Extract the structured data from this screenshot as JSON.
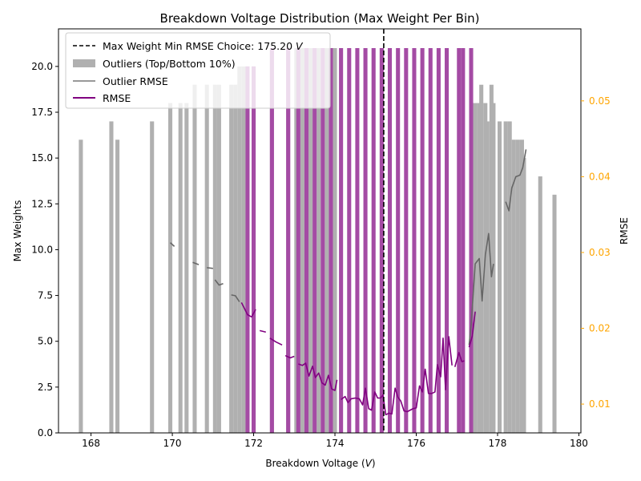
{
  "chart_data": {
    "type": "bar",
    "title": "Breakdown Voltage Distribution (Max Weight Per Bin)",
    "xlabel": "Breakdown Voltage (",
    "xlabel_unit": "V",
    "xlabel_close": ")",
    "ylabel": "Max Weights",
    "y2label": "RMSE",
    "xlim": [
      167.2,
      180.05
    ],
    "ylim": [
      0,
      22.05
    ],
    "y2lim": [
      0.0062,
      0.0595
    ],
    "xticks": [
      168,
      170,
      172,
      174,
      176,
      178,
      180
    ],
    "yticks": [
      0.0,
      2.5,
      5.0,
      7.5,
      10.0,
      12.5,
      15.0,
      17.5,
      20.0
    ],
    "y2ticks": [
      0.01,
      0.02,
      0.03,
      0.04,
      0.05
    ],
    "grid": false,
    "legend_position": "upper-left",
    "colors": {
      "outlier_bar": "#b0b0b0",
      "main_bar": "#a44ba4",
      "outlier_rmse": "#666666",
      "rmse": "#800080",
      "choice_line": "#000000",
      "right_axis": "#ffa500"
    },
    "choice_line": {
      "x": 175.2,
      "label_prefix": "Max Weight Min RMSE Choice: 175.20 ",
      "label_unit": "V"
    },
    "bar_width": 0.1,
    "series": [
      {
        "name": "Outliers (Top/Bottom 10%)",
        "kind": "bar",
        "points": [
          [
            167.75,
            16
          ],
          [
            168.5,
            17
          ],
          [
            168.65,
            16
          ],
          [
            169.5,
            17
          ],
          [
            169.95,
            18
          ],
          [
            170.2,
            18
          ],
          [
            170.35,
            18
          ],
          [
            170.55,
            19
          ],
          [
            170.85,
            19
          ],
          [
            171.05,
            19
          ],
          [
            171.15,
            19
          ],
          [
            171.45,
            19
          ],
          [
            171.55,
            19
          ],
          [
            171.65,
            20
          ],
          [
            171.75,
            20
          ],
          [
            171.85,
            20
          ],
          [
            172.0,
            20
          ],
          [
            172.45,
            21
          ],
          [
            172.85,
            21
          ],
          [
            173.05,
            21
          ],
          [
            173.2,
            21
          ],
          [
            173.4,
            21
          ],
          [
            173.6,
            21
          ],
          [
            173.8,
            21
          ],
          [
            174.0,
            21
          ],
          [
            177.45,
            18
          ],
          [
            177.55,
            18
          ],
          [
            177.6,
            19
          ],
          [
            177.7,
            18
          ],
          [
            177.75,
            17
          ],
          [
            177.85,
            19
          ],
          [
            177.9,
            18
          ],
          [
            178.05,
            17
          ],
          [
            178.2,
            17
          ],
          [
            178.3,
            17
          ],
          [
            178.4,
            16
          ],
          [
            178.5,
            16
          ],
          [
            178.6,
            16
          ],
          [
            178.65,
            15
          ],
          [
            179.05,
            14
          ],
          [
            179.4,
            13
          ]
        ]
      },
      {
        "name": "",
        "kind": "bar",
        "points": [
          [
            171.85,
            20
          ],
          [
            172.0,
            20
          ],
          [
            172.45,
            21
          ],
          [
            172.85,
            21
          ],
          [
            173.1,
            21
          ],
          [
            173.3,
            21
          ],
          [
            173.5,
            21
          ],
          [
            173.7,
            21
          ],
          [
            173.9,
            21
          ],
          [
            174.15,
            21
          ],
          [
            174.35,
            21
          ],
          [
            174.55,
            21
          ],
          [
            174.75,
            21
          ],
          [
            174.95,
            21
          ],
          [
            175.15,
            21
          ],
          [
            175.35,
            21
          ],
          [
            175.55,
            21
          ],
          [
            175.75,
            21
          ],
          [
            175.95,
            21
          ],
          [
            176.15,
            21
          ],
          [
            176.35,
            21
          ],
          [
            176.55,
            21
          ],
          [
            176.75,
            21
          ],
          [
            177.05,
            21
          ],
          [
            177.15,
            21
          ],
          [
            177.35,
            21
          ]
        ]
      },
      {
        "name": "Outlier RMSE",
        "kind": "line",
        "segments": [
          [
            [
              169.95,
              0.0313
            ],
            [
              170.05,
              0.0308
            ]
          ],
          [
            [
              170.5,
              0.0287
            ],
            [
              170.65,
              0.0284
            ]
          ],
          [
            [
              170.85,
              0.028
            ],
            [
              171.0,
              0.0279
            ]
          ],
          [
            [
              171.05,
              0.0264
            ],
            [
              171.15,
              0.0257
            ],
            [
              171.25,
              0.0259
            ]
          ],
          [
            [
              171.45,
              0.0244
            ],
            [
              171.55,
              0.0243
            ],
            [
              171.65,
              0.0235
            ]
          ],
          [
            [
              177.3,
              0.0178
            ],
            [
              177.35,
              0.0205
            ],
            [
              177.45,
              0.0285
            ],
            [
              177.55,
              0.0292
            ],
            [
              177.62,
              0.0236
            ],
            [
              177.7,
              0.0297
            ],
            [
              177.78,
              0.0325
            ],
            [
              177.85,
              0.0268
            ],
            [
              177.9,
              0.0285
            ]
          ],
          [
            [
              178.2,
              0.0367
            ],
            [
              178.28,
              0.0355
            ],
            [
              178.35,
              0.0385
            ],
            [
              178.45,
              0.04
            ],
            [
              178.55,
              0.0402
            ],
            [
              178.62,
              0.0412
            ],
            [
              178.7,
              0.0436
            ]
          ]
        ]
      },
      {
        "name": "RMSE",
        "kind": "line",
        "segments": [
          [
            [
              171.7,
              0.0234
            ],
            [
              171.85,
              0.0218
            ],
            [
              171.95,
              0.0215
            ],
            [
              172.05,
              0.0225
            ]
          ],
          [
            [
              172.15,
              0.0197
            ],
            [
              172.3,
              0.0195
            ]
          ],
          [
            [
              172.4,
              0.0187
            ],
            [
              172.55,
              0.0182
            ],
            [
              172.7,
              0.0178
            ]
          ],
          [
            [
              172.78,
              0.0164
            ],
            [
              172.9,
              0.0161
            ],
            [
              173.0,
              0.0163
            ]
          ],
          [
            [
              173.1,
              0.0153
            ],
            [
              173.2,
              0.0151
            ],
            [
              173.28,
              0.0154
            ],
            [
              173.36,
              0.0137
            ],
            [
              173.45,
              0.015
            ],
            [
              173.52,
              0.0135
            ],
            [
              173.6,
              0.0141
            ],
            [
              173.68,
              0.0128
            ],
            [
              173.76,
              0.0125
            ],
            [
              173.84,
              0.0138
            ],
            [
              173.92,
              0.012
            ],
            [
              174.0,
              0.0118
            ],
            [
              174.05,
              0.0132
            ]
          ],
          [
            [
              174.15,
              0.0106
            ],
            [
              174.25,
              0.011
            ],
            [
              174.32,
              0.0102
            ],
            [
              174.4,
              0.0107
            ],
            [
              174.5,
              0.0108
            ],
            [
              174.6,
              0.0107
            ],
            [
              174.68,
              0.0099
            ],
            [
              174.75,
              0.0121
            ],
            [
              174.83,
              0.0094
            ],
            [
              174.9,
              0.0092
            ],
            [
              174.98,
              0.0116
            ],
            [
              175.05,
              0.0108
            ],
            [
              175.12,
              0.0108
            ],
            [
              175.18,
              0.0112
            ],
            [
              175.25,
              0.0086
            ],
            [
              175.33,
              0.0088
            ],
            [
              175.4,
              0.0087
            ],
            [
              175.48,
              0.0121
            ],
            [
              175.55,
              0.0109
            ],
            [
              175.62,
              0.0104
            ],
            [
              175.7,
              0.0091
            ],
            [
              175.78,
              0.009
            ],
            [
              175.85,
              0.0092
            ],
            [
              175.92,
              0.0094
            ],
            [
              176.0,
              0.0095
            ],
            [
              176.08,
              0.0124
            ],
            [
              176.15,
              0.0116
            ],
            [
              176.22,
              0.0146
            ],
            [
              176.3,
              0.0114
            ],
            [
              176.38,
              0.0114
            ],
            [
              176.46,
              0.0116
            ],
            [
              176.52,
              0.0152
            ],
            [
              176.6,
              0.0136
            ],
            [
              176.66,
              0.0187
            ],
            [
              176.72,
              0.0119
            ],
            [
              176.8,
              0.0189
            ],
            [
              176.88,
              0.0151
            ]
          ],
          [
            [
              176.95,
              0.0149
            ],
            [
              177.05,
              0.0168
            ],
            [
              177.12,
              0.0156
            ],
            [
              177.18,
              0.0157
            ]
          ],
          [
            [
              177.3,
              0.0175
            ],
            [
              177.38,
              0.019
            ],
            [
              177.45,
              0.0222
            ]
          ]
        ]
      }
    ]
  }
}
